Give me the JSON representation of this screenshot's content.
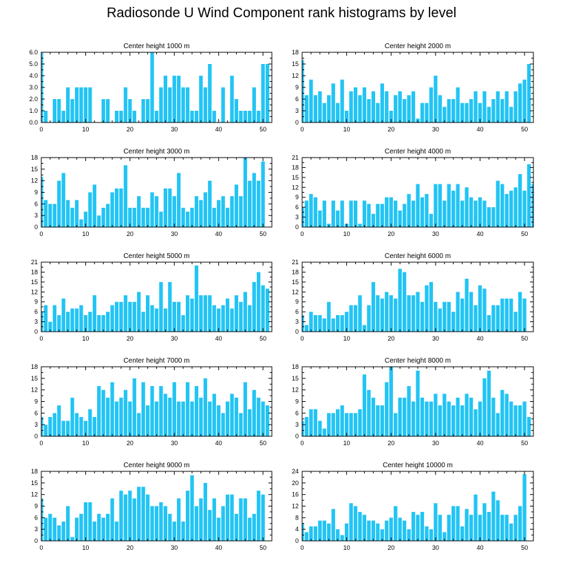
{
  "title": "Radiosonde U Wind Component rank histograms by level",
  "colors": {
    "bar": "#22c4f4",
    "axis": "#000000"
  },
  "chart_data": [
    {
      "type": "bar",
      "title": "Center height 1000 m",
      "xlim": [
        0,
        52
      ],
      "ylim": [
        0,
        6
      ],
      "yticks": [
        0,
        1,
        2,
        3,
        4,
        5,
        6
      ],
      "yticklabels": [
        "0.0",
        "1.0",
        "2.0",
        "3.0",
        "4.0",
        "5.0",
        "6.0"
      ],
      "xticks": [
        0,
        10,
        20,
        30,
        40,
        50
      ],
      "xticklabels": [
        "0",
        "10",
        "20",
        "30",
        "40",
        "50"
      ],
      "values": [
        6,
        1,
        0,
        2,
        2,
        1,
        3,
        2,
        3,
        3,
        3,
        3,
        0,
        0,
        2,
        2,
        0,
        1,
        1,
        3,
        2,
        1,
        0,
        2,
        2,
        6,
        1,
        3,
        4,
        3,
        4,
        4,
        3,
        3,
        1,
        1,
        4,
        3,
        5,
        1,
        0,
        3,
        0,
        4,
        2,
        1,
        1,
        1,
        3,
        1,
        5,
        5
      ]
    },
    {
      "type": "bar",
      "title": "Center height 2000 m",
      "xlim": [
        0,
        52
      ],
      "ylim": [
        0,
        18
      ],
      "yticks": [
        0,
        3,
        6,
        9,
        12,
        15,
        18
      ],
      "yticklabels": [
        "0",
        "3",
        "6",
        "9",
        "12",
        "15",
        "18"
      ],
      "xticks": [
        0,
        10,
        20,
        30,
        40,
        50
      ],
      "xticklabels": [
        "0",
        "10",
        "20",
        "30",
        "40",
        "50"
      ],
      "values": [
        16,
        7,
        11,
        7,
        8,
        5,
        7,
        10,
        5,
        11,
        3,
        8,
        9,
        7,
        9,
        6,
        8,
        5,
        10,
        8,
        3,
        7,
        8,
        6,
        7,
        8,
        1,
        5,
        5,
        9,
        12,
        7,
        4,
        6,
        6,
        9,
        5,
        5,
        6,
        8,
        5,
        8,
        4,
        6,
        8,
        6,
        8,
        4,
        8,
        10,
        11,
        15
      ]
    },
    {
      "type": "bar",
      "title": "Center height 3000 m",
      "xlim": [
        0,
        52
      ],
      "ylim": [
        0,
        18
      ],
      "yticks": [
        0,
        3,
        6,
        9,
        12,
        15,
        18
      ],
      "yticklabels": [
        "0",
        "3",
        "6",
        "9",
        "12",
        "15",
        "18"
      ],
      "xticks": [
        0,
        10,
        20,
        30,
        40,
        50
      ],
      "xticklabels": [
        "0",
        "10",
        "20",
        "30",
        "40",
        "50"
      ],
      "values": [
        13,
        7,
        6,
        6,
        12,
        14,
        7,
        5,
        7,
        2,
        4,
        9,
        11,
        3,
        5,
        6,
        9,
        10,
        10,
        16,
        5,
        5,
        8,
        5,
        5,
        9,
        8,
        4,
        10,
        10,
        8,
        14,
        5,
        4,
        5,
        8,
        7,
        9,
        12,
        5,
        7,
        8,
        5,
        8,
        11,
        8,
        18,
        12,
        14,
        12,
        17,
        0
      ]
    },
    {
      "type": "bar",
      "title": "Center height 4000 m",
      "xlim": [
        0,
        52
      ],
      "ylim": [
        0,
        21
      ],
      "yticks": [
        0,
        3,
        6,
        9,
        12,
        15,
        18,
        21
      ],
      "yticklabels": [
        "0",
        "3",
        "6",
        "9",
        "12",
        "15",
        "18",
        "21"
      ],
      "xticks": [
        0,
        10,
        20,
        30,
        40,
        50
      ],
      "xticklabels": [
        "0",
        "10",
        "20",
        "30",
        "40",
        "50"
      ],
      "values": [
        6,
        8,
        10,
        9,
        5,
        8,
        1,
        8,
        5,
        8,
        1,
        8,
        8,
        1,
        8,
        7,
        4,
        7,
        7,
        9,
        9,
        8,
        5,
        7,
        10,
        8,
        13,
        9,
        10,
        4,
        13,
        13,
        8,
        13,
        11,
        13,
        8,
        12,
        9,
        8,
        9,
        8,
        6,
        6,
        14,
        13,
        10,
        11,
        12,
        16,
        11,
        19,
        13
      ]
    },
    {
      "type": "bar",
      "title": "Center height 5000 m",
      "xlim": [
        0,
        52
      ],
      "ylim": [
        0,
        21
      ],
      "yticks": [
        0,
        3,
        6,
        9,
        12,
        15,
        18,
        21
      ],
      "yticklabels": [
        "0",
        "3",
        "6",
        "9",
        "12",
        "15",
        "18",
        "21"
      ],
      "xticks": [
        0,
        10,
        20,
        30,
        40,
        50
      ],
      "xticklabels": [
        "0",
        "10",
        "20",
        "30",
        "40",
        "50"
      ],
      "values": [
        6,
        8,
        3,
        8,
        5,
        10,
        6,
        7,
        7,
        8,
        5,
        6,
        11,
        5,
        5,
        6,
        8,
        9,
        9,
        11,
        9,
        9,
        12,
        6,
        11,
        8,
        7,
        15,
        7,
        15,
        9,
        9,
        5,
        11,
        10,
        20,
        11,
        11,
        11,
        8,
        7,
        8,
        10,
        7,
        11,
        9,
        12,
        8,
        15,
        18,
        14,
        13
      ]
    },
    {
      "type": "bar",
      "title": "Center height 6000 m",
      "xlim": [
        0,
        52
      ],
      "ylim": [
        0,
        21
      ],
      "yticks": [
        0,
        3,
        6,
        9,
        12,
        15,
        18,
        21
      ],
      "yticklabels": [
        "0",
        "3",
        "6",
        "9",
        "12",
        "15",
        "18",
        "21"
      ],
      "xticks": [
        0,
        10,
        20,
        30,
        40,
        50
      ],
      "xticklabels": [
        "0",
        "10",
        "20",
        "30",
        "40",
        "50"
      ],
      "values": [
        5,
        2,
        6,
        5,
        5,
        4,
        9,
        4,
        5,
        5,
        6,
        8,
        8,
        11,
        2,
        8,
        15,
        11,
        10,
        12,
        11,
        10,
        19,
        18,
        11,
        11,
        12,
        9,
        14,
        15,
        9,
        7,
        9,
        9,
        6,
        12,
        10,
        16,
        12,
        8,
        14,
        13,
        5,
        8,
        8,
        10,
        10,
        10,
        6,
        12,
        10,
        0
      ]
    },
    {
      "type": "bar",
      "title": "Center height 7000 m",
      "xlim": [
        0,
        52
      ],
      "ylim": [
        0,
        18
      ],
      "yticks": [
        0,
        3,
        6,
        9,
        12,
        15,
        18
      ],
      "yticklabels": [
        "0",
        "3",
        "6",
        "9",
        "12",
        "15",
        "18"
      ],
      "xticks": [
        0,
        10,
        20,
        30,
        40,
        50
      ],
      "xticklabels": [
        "0",
        "10",
        "20",
        "30",
        "40",
        "50"
      ],
      "values": [
        5,
        3,
        5,
        6,
        8,
        4,
        4,
        10,
        6,
        5,
        4,
        7,
        5,
        13,
        12,
        10,
        14,
        9,
        10,
        12,
        9,
        15,
        6,
        14,
        8,
        13,
        9,
        13,
        11,
        10,
        14,
        9,
        9,
        14,
        9,
        13,
        10,
        15,
        9,
        11,
        8,
        6,
        9,
        11,
        10,
        6,
        14,
        7,
        12,
        10,
        9,
        8
      ]
    },
    {
      "type": "bar",
      "title": "Center height 8000 m",
      "xlim": [
        0,
        52
      ],
      "ylim": [
        0,
        18
      ],
      "yticks": [
        0,
        3,
        6,
        9,
        12,
        15,
        18
      ],
      "yticklabels": [
        "0",
        "3",
        "6",
        "9",
        "12",
        "15",
        "18"
      ],
      "xticks": [
        0,
        10,
        20,
        30,
        40,
        50
      ],
      "xticklabels": [
        "0",
        "10",
        "20",
        "30",
        "40",
        "50"
      ],
      "values": [
        4,
        5,
        7,
        7,
        4,
        2,
        6,
        6,
        7,
        8,
        6,
        6,
        6,
        7,
        16,
        12,
        10,
        8,
        8,
        14,
        18,
        6,
        10,
        10,
        13,
        9,
        17,
        10,
        9,
        9,
        11,
        8,
        11,
        9,
        8,
        10,
        8,
        11,
        10,
        7,
        9,
        15,
        17,
        10,
        6,
        12,
        11,
        9,
        8,
        8,
        9,
        5
      ]
    },
    {
      "type": "bar",
      "title": "Center height 9000 m",
      "xlim": [
        0,
        52
      ],
      "ylim": [
        0,
        18
      ],
      "yticks": [
        0,
        3,
        6,
        9,
        12,
        15,
        18
      ],
      "yticklabels": [
        "0",
        "3",
        "6",
        "9",
        "12",
        "15",
        "18"
      ],
      "xticks": [
        0,
        10,
        20,
        30,
        40,
        50
      ],
      "xticklabels": [
        "0",
        "10",
        "20",
        "30",
        "40",
        "50"
      ],
      "values": [
        11,
        6,
        7,
        6,
        4,
        5,
        9,
        1,
        6,
        7,
        10,
        10,
        5,
        7,
        6,
        7,
        11,
        5,
        13,
        12,
        13,
        11,
        14,
        14,
        12,
        9,
        9,
        10,
        9,
        7,
        5,
        11,
        5,
        13,
        17,
        9,
        11,
        15,
        8,
        11,
        6,
        9,
        12,
        12,
        7,
        11,
        11,
        6,
        7,
        13,
        12,
        0
      ]
    },
    {
      "type": "bar",
      "title": "Center height 10000 m",
      "xlim": [
        0,
        52
      ],
      "ylim": [
        0,
        24
      ],
      "yticks": [
        0,
        4,
        8,
        12,
        16,
        20,
        24
      ],
      "yticklabels": [
        "0",
        "4",
        "8",
        "12",
        "16",
        "20",
        "24"
      ],
      "xticks": [
        0,
        10,
        20,
        30,
        40,
        50
      ],
      "xticklabels": [
        "0",
        "10",
        "20",
        "30",
        "40",
        "50"
      ],
      "values": [
        6,
        3,
        5,
        5,
        7,
        7,
        6,
        11,
        4,
        2,
        6,
        13,
        12,
        10,
        9,
        7,
        7,
        6,
        4,
        7,
        8,
        12,
        8,
        7,
        4,
        10,
        9,
        10,
        5,
        4,
        13,
        9,
        3,
        9,
        12,
        12,
        5,
        11,
        9,
        16,
        9,
        13,
        10,
        17,
        14,
        9,
        9,
        6,
        9,
        12,
        23,
        0
      ]
    }
  ]
}
